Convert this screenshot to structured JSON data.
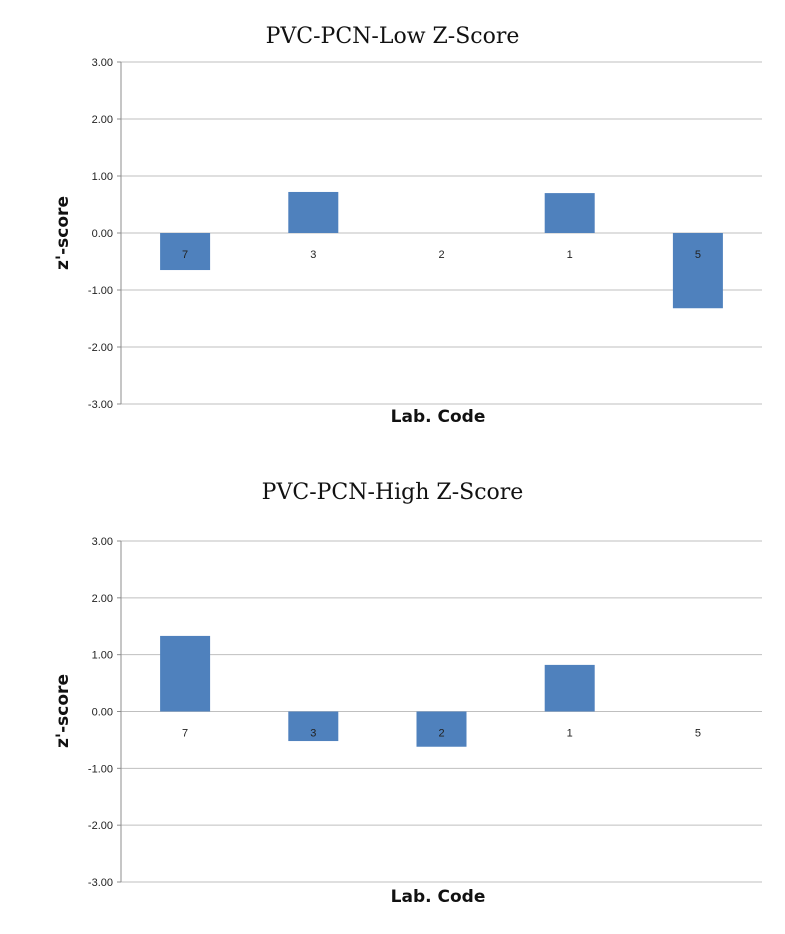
{
  "chart_data": [
    {
      "type": "bar",
      "title": "PVC-PCN-Low  Z-Score",
      "xlabel": "Lab. Code",
      "ylabel": "z'-score",
      "categories": [
        "7",
        "3",
        "2",
        "1",
        "5"
      ],
      "values": [
        -0.65,
        0.72,
        0.0,
        0.7,
        -1.32
      ],
      "ylim": [
        -3,
        3
      ],
      "yticks": [
        "3.00",
        "2.00",
        "1.00",
        "0.00",
        "-1.00",
        "-2.00",
        "-3.00"
      ],
      "grid": true,
      "bar_color": "#4f81bd"
    },
    {
      "type": "bar",
      "title": "PVC-PCN-High  Z-Score",
      "xlabel": "Lab. Code",
      "ylabel": "z'-score",
      "categories": [
        "7",
        "3",
        "2",
        "1",
        "5"
      ],
      "values": [
        1.33,
        -0.52,
        -0.62,
        0.82,
        0.0
      ],
      "ylim": [
        -3,
        3
      ],
      "yticks": [
        "3.00",
        "2.00",
        "1.00",
        "0.00",
        "-1.00",
        "-2.00",
        "-3.00"
      ],
      "grid": true,
      "bar_color": "#4f81bd"
    }
  ]
}
